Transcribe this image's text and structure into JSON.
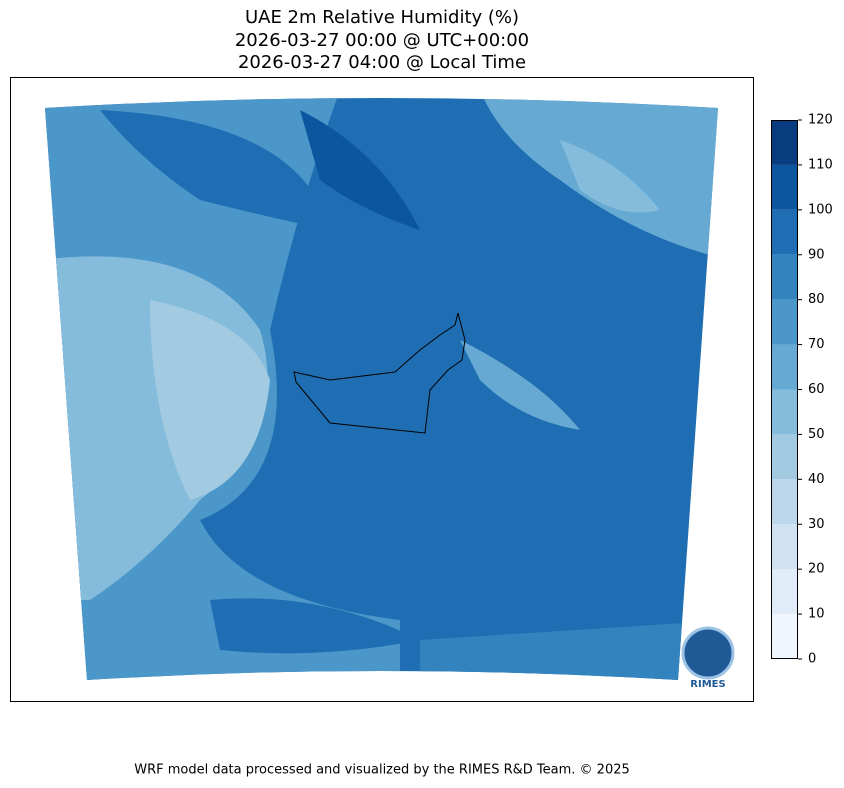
{
  "title": [
    "UAE 2m Relative Humidity (%)",
    "2026-03-27 00:00 @ UTC+00:00",
    "2026-03-27 04:00 @ Local Time"
  ],
  "colorbar": {
    "ticks": [
      0,
      10,
      20,
      30,
      40,
      50,
      60,
      70,
      80,
      90,
      100,
      110,
      120
    ],
    "colors": [
      "#f0f6fd",
      "#e0ecf8",
      "#d0e2f2",
      "#bcd7eb",
      "#a2cbe2",
      "#85bcdc",
      "#66aad4",
      "#4c97c9",
      "#3383be",
      "#1f6eb3",
      "#0c56a0",
      "#083c7f"
    ]
  },
  "logo": "RIMES",
  "footer": "WRF model data processed and visualized by the RIMES R&D Team. © 2025"
}
